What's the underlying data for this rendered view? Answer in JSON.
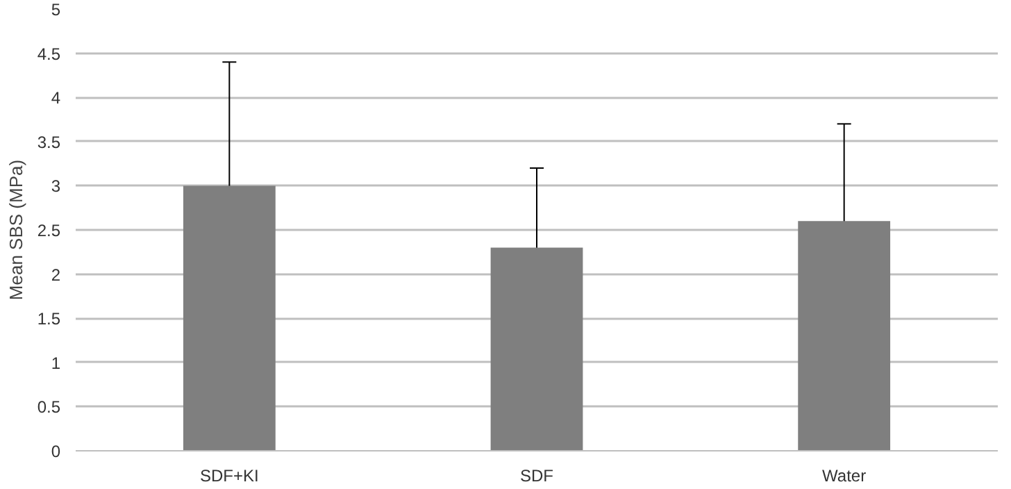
{
  "chart_data": {
    "type": "bar",
    "ylabel": "Mean SBS (MPa)",
    "categories": [
      "SDF+KI",
      "SDF",
      "Water"
    ],
    "values": [
      3.0,
      2.3,
      2.6
    ],
    "errors": [
      1.4,
      0.9,
      1.1
    ],
    "color": "#7f7f7f",
    "ylim": [
      0,
      5
    ],
    "yticks": [
      0,
      0.5,
      1,
      1.5,
      2,
      2.5,
      3,
      3.5,
      4,
      4.5,
      5
    ],
    "grid": "y"
  }
}
